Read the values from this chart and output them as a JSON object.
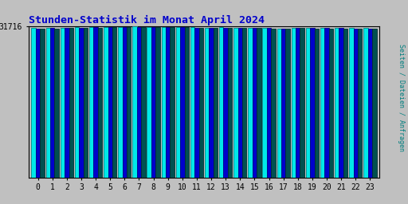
{
  "title": "Stunden-Statistik im Monat April 2024",
  "title_color": "#0000cc",
  "title_fontsize": 9.5,
  "background_color": "#c0c0c0",
  "plot_bg_color": "#c0c0c0",
  "ylabel": "Seiten / Dateien / Anfragen",
  "ylabel_color": "#008080",
  "hours": [
    0,
    1,
    2,
    3,
    4,
    5,
    6,
    7,
    8,
    9,
    10,
    11,
    12,
    13,
    14,
    15,
    16,
    17,
    18,
    19,
    20,
    21,
    22,
    23
  ],
  "ytick_label": "31716",
  "ytick_color": "#000000",
  "seiten": [
    31400,
    31450,
    31500,
    31550,
    31600,
    31680,
    31700,
    31716,
    31710,
    31695,
    31680,
    31550,
    31530,
    31550,
    31510,
    31460,
    31420,
    31320,
    31460,
    31460,
    31455,
    31435,
    31415,
    31390
  ],
  "dateien": [
    31350,
    31400,
    31450,
    31500,
    31560,
    31630,
    31660,
    31690,
    31680,
    31665,
    31645,
    31510,
    31500,
    31510,
    31480,
    31430,
    31380,
    31270,
    31420,
    31420,
    31415,
    31395,
    31375,
    31350
  ],
  "anfragen": [
    31300,
    31350,
    31400,
    31450,
    31510,
    31580,
    31610,
    31640,
    31630,
    31615,
    31600,
    31470,
    31465,
    31470,
    31440,
    31390,
    31340,
    31220,
    31380,
    31375,
    31370,
    31350,
    31330,
    31305
  ],
  "color_seiten": "#00e8e8",
  "color_dateien": "#0000cc",
  "color_anfragen": "#005050",
  "edge_color_seiten": "#008888",
  "edge_color_dateien": "#000088",
  "edge_color_anfragen": "#003030",
  "bar_width": 0.3,
  "ymin": 30800,
  "ymax": 31750
}
